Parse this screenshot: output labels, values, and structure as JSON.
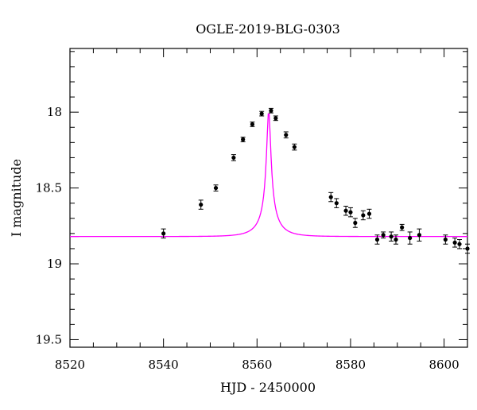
{
  "chart_data": {
    "type": "scatter",
    "title": "OGLE-2019-BLG-0303",
    "xlabel": "HJD - 2450000",
    "ylabel": "I magnitude",
    "xlim": [
      8520,
      8605
    ],
    "ylim": [
      19.55,
      17.58
    ],
    "y_inverted": true,
    "xticks": [
      8520,
      8540,
      8560,
      8580,
      8600
    ],
    "yticks": [
      18,
      18.5,
      19,
      19.5
    ],
    "ytick_labels": [
      "18",
      "18.5",
      "19",
      "19.5"
    ],
    "grid": false,
    "colors": {
      "points": "#000000",
      "model": "#ff00ff"
    },
    "series": [
      {
        "kind": "points_with_errorbars",
        "x": [
          8540.0,
          8548.0,
          8551.2,
          8555.0,
          8557.0,
          8559.0,
          8561.0,
          8563.0,
          8564.0,
          8566.2,
          8568.0,
          8575.8,
          8577.0,
          8579.0,
          8580.0,
          8581.0,
          8582.7,
          8584.0,
          8585.7,
          8587.0,
          8588.7,
          8589.7,
          8591.0,
          8592.7,
          8594.7,
          8600.3,
          8602.3,
          8603.3,
          8605.0
        ],
        "y": [
          18.8,
          18.61,
          18.5,
          18.3,
          18.18,
          18.08,
          18.01,
          17.99,
          18.04,
          18.15,
          18.23,
          18.56,
          18.6,
          18.65,
          18.66,
          18.73,
          18.68,
          18.67,
          18.84,
          18.81,
          18.82,
          18.84,
          18.76,
          18.83,
          18.81,
          18.84,
          18.86,
          18.87,
          18.9
        ],
        "err": [
          0.03,
          0.03,
          0.02,
          0.02,
          0.015,
          0.015,
          0.015,
          0.015,
          0.015,
          0.02,
          0.02,
          0.03,
          0.03,
          0.03,
          0.03,
          0.03,
          0.03,
          0.03,
          0.03,
          0.02,
          0.03,
          0.03,
          0.02,
          0.04,
          0.04,
          0.03,
          0.03,
          0.03,
          0.03
        ]
      },
      {
        "kind": "model_curve",
        "model": "paczynski",
        "t0": 8562.5,
        "tE": 4.5,
        "u0": 0.1,
        "I_base": 18.82,
        "I_peak": 17.99
      }
    ]
  }
}
